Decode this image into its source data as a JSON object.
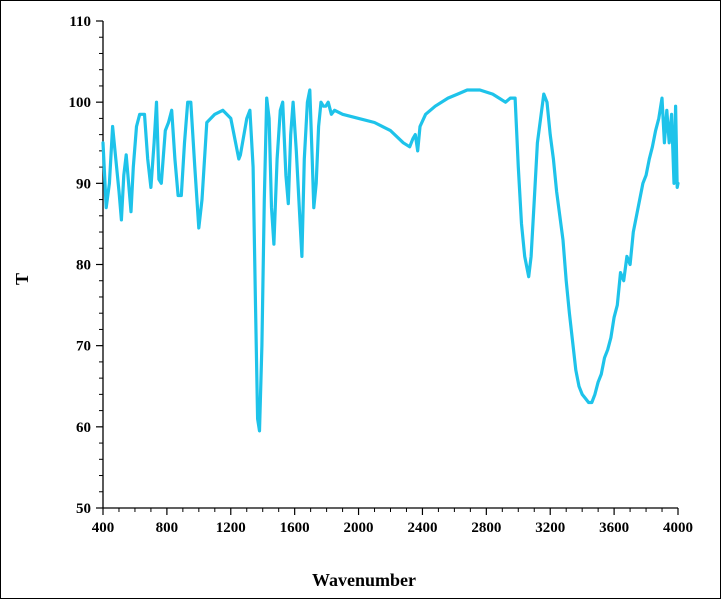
{
  "chart_data": {
    "type": "line",
    "title": "",
    "xlabel": "Wavenumber",
    "ylabel": "T",
    "xlim": [
      400,
      4000
    ],
    "ylim": [
      50,
      110
    ],
    "x_ticks": [
      400,
      800,
      1200,
      1600,
      2000,
      2400,
      2800,
      3200,
      3600,
      4000
    ],
    "y_ticks": [
      50,
      60,
      70,
      80,
      90,
      100,
      110
    ],
    "grid": false,
    "legend": "none",
    "series": [
      {
        "color": "#1EC3EA",
        "points": [
          [
            400,
            95
          ],
          [
            420,
            87
          ],
          [
            440,
            90
          ],
          [
            460,
            97
          ],
          [
            480,
            93
          ],
          [
            500,
            89
          ],
          [
            515,
            85.5
          ],
          [
            530,
            91
          ],
          [
            545,
            93.5
          ],
          [
            560,
            90
          ],
          [
            575,
            86.5
          ],
          [
            590,
            92
          ],
          [
            610,
            97
          ],
          [
            630,
            98.5
          ],
          [
            660,
            98.5
          ],
          [
            680,
            93
          ],
          [
            700,
            89.5
          ],
          [
            720,
            95
          ],
          [
            735,
            100
          ],
          [
            750,
            90.5
          ],
          [
            765,
            90
          ],
          [
            790,
            96.5
          ],
          [
            810,
            97.5
          ],
          [
            830,
            99
          ],
          [
            850,
            93
          ],
          [
            870,
            88.5
          ],
          [
            890,
            88.5
          ],
          [
            910,
            95
          ],
          [
            930,
            100
          ],
          [
            950,
            100
          ],
          [
            975,
            92
          ],
          [
            1000,
            84.5
          ],
          [
            1020,
            88
          ],
          [
            1050,
            97.5
          ],
          [
            1100,
            98.5
          ],
          [
            1150,
            99
          ],
          [
            1200,
            98
          ],
          [
            1250,
            93
          ],
          [
            1260,
            93.5
          ],
          [
            1300,
            98
          ],
          [
            1320,
            99
          ],
          [
            1340,
            92
          ],
          [
            1355,
            75
          ],
          [
            1368,
            61
          ],
          [
            1380,
            59.5
          ],
          [
            1395,
            70
          ],
          [
            1410,
            88
          ],
          [
            1425,
            100.5
          ],
          [
            1440,
            98
          ],
          [
            1455,
            87
          ],
          [
            1470,
            82.5
          ],
          [
            1490,
            93
          ],
          [
            1510,
            99
          ],
          [
            1525,
            100
          ],
          [
            1545,
            91
          ],
          [
            1560,
            87.5
          ],
          [
            1575,
            96
          ],
          [
            1590,
            100
          ],
          [
            1610,
            94
          ],
          [
            1630,
            86.5
          ],
          [
            1645,
            81
          ],
          [
            1660,
            93
          ],
          [
            1680,
            100
          ],
          [
            1695,
            101.5
          ],
          [
            1710,
            93
          ],
          [
            1720,
            87
          ],
          [
            1735,
            90
          ],
          [
            1750,
            97
          ],
          [
            1765,
            100
          ],
          [
            1780,
            99.5
          ],
          [
            1795,
            99.5
          ],
          [
            1810,
            100
          ],
          [
            1830,
            98.5
          ],
          [
            1850,
            99
          ],
          [
            1900,
            98.5
          ],
          [
            2000,
            98
          ],
          [
            2100,
            97.5
          ],
          [
            2200,
            96.5
          ],
          [
            2280,
            95
          ],
          [
            2320,
            94.5
          ],
          [
            2340,
            95.5
          ],
          [
            2355,
            96
          ],
          [
            2370,
            94
          ],
          [
            2385,
            97
          ],
          [
            2420,
            98.5
          ],
          [
            2480,
            99.5
          ],
          [
            2560,
            100.5
          ],
          [
            2620,
            101
          ],
          [
            2680,
            101.5
          ],
          [
            2760,
            101.5
          ],
          [
            2840,
            101
          ],
          [
            2880,
            100.5
          ],
          [
            2920,
            100
          ],
          [
            2950,
            100.5
          ],
          [
            2980,
            100.5
          ],
          [
            3000,
            92
          ],
          [
            3020,
            85
          ],
          [
            3040,
            81
          ],
          [
            3065,
            78.5
          ],
          [
            3080,
            81
          ],
          [
            3100,
            88
          ],
          [
            3120,
            95
          ],
          [
            3140,
            98
          ],
          [
            3160,
            101
          ],
          [
            3180,
            100
          ],
          [
            3200,
            96
          ],
          [
            3220,
            93
          ],
          [
            3240,
            89
          ],
          [
            3260,
            86
          ],
          [
            3280,
            83
          ],
          [
            3300,
            78
          ],
          [
            3320,
            74
          ],
          [
            3340,
            70.5
          ],
          [
            3360,
            67
          ],
          [
            3380,
            65
          ],
          [
            3400,
            64
          ],
          [
            3420,
            63.5
          ],
          [
            3440,
            63
          ],
          [
            3460,
            63
          ],
          [
            3480,
            64
          ],
          [
            3500,
            65.5
          ],
          [
            3520,
            66.5
          ],
          [
            3540,
            68.5
          ],
          [
            3560,
            69.5
          ],
          [
            3580,
            71
          ],
          [
            3600,
            73.5
          ],
          [
            3620,
            75
          ],
          [
            3640,
            79
          ],
          [
            3660,
            78
          ],
          [
            3680,
            81
          ],
          [
            3700,
            80
          ],
          [
            3720,
            84
          ],
          [
            3740,
            86
          ],
          [
            3760,
            88
          ],
          [
            3780,
            90
          ],
          [
            3800,
            91
          ],
          [
            3820,
            93
          ],
          [
            3840,
            94.5
          ],
          [
            3860,
            96.5
          ],
          [
            3880,
            98
          ],
          [
            3900,
            100.5
          ],
          [
            3915,
            95
          ],
          [
            3930,
            99
          ],
          [
            3945,
            95
          ],
          [
            3960,
            98.5
          ],
          [
            3975,
            90
          ],
          [
            3985,
            99.5
          ],
          [
            3995,
            89.5
          ],
          [
            4000,
            90
          ]
        ]
      }
    ]
  }
}
